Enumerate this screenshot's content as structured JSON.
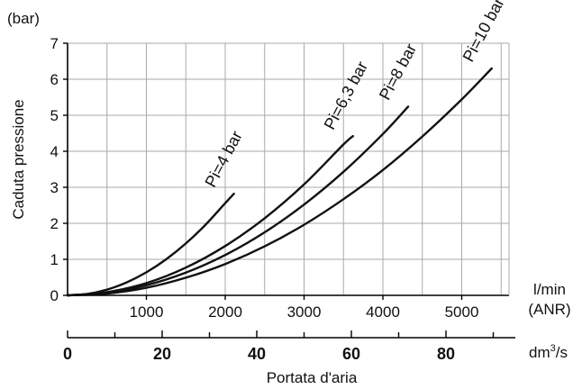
{
  "chart_data": {
    "type": "line",
    "title": "",
    "ylabel": "Caduta pressione",
    "yunit": "(bar)",
    "ylim": [
      0,
      7
    ],
    "yticks": [
      0,
      1,
      2,
      3,
      4,
      5,
      6,
      7
    ],
    "xlim": [
      0,
      5600
    ],
    "xticks": [
      1000,
      2000,
      3000,
      4000,
      5000
    ],
    "xunit_lines": [
      "l/min",
      "(ANR)"
    ],
    "secondary_x": {
      "ticks": [
        0,
        20,
        40,
        60,
        80
      ],
      "unit_base": "dm",
      "unit_sup": "3",
      "unit_tail": "/s",
      "label": "Portata d'aria"
    },
    "grid": true,
    "series": [
      {
        "name": "Pi=4 bar",
        "x": [
          0,
          250,
          500,
          750,
          1000,
          1250,
          1500,
          1750,
          2000,
          2110
        ],
        "y": [
          0,
          0.04,
          0.16,
          0.36,
          0.64,
          1.0,
          1.44,
          1.96,
          2.56,
          2.82
        ]
      },
      {
        "name": "Pi=6,3 bar",
        "x": [
          0,
          500,
          1000,
          1500,
          2000,
          2500,
          3000,
          3500,
          3620
        ],
        "y": [
          0,
          0.09,
          0.34,
          0.77,
          1.37,
          2.14,
          3.08,
          4.19,
          4.42
        ]
      },
      {
        "name": "Pi=8 bar",
        "x": [
          0,
          500,
          1000,
          1500,
          2000,
          2500,
          3000,
          3500,
          4000,
          4320
        ],
        "y": [
          0,
          0.07,
          0.28,
          0.63,
          1.12,
          1.75,
          2.52,
          3.43,
          4.48,
          5.24
        ]
      },
      {
        "name": "Pi=10 bar",
        "x": [
          0,
          500,
          1000,
          1500,
          2000,
          2500,
          3000,
          3500,
          4000,
          4500,
          5000,
          5380
        ],
        "y": [
          0,
          0.05,
          0.21,
          0.49,
          0.87,
          1.36,
          1.96,
          2.67,
          3.48,
          4.41,
          5.44,
          6.3
        ]
      }
    ]
  }
}
